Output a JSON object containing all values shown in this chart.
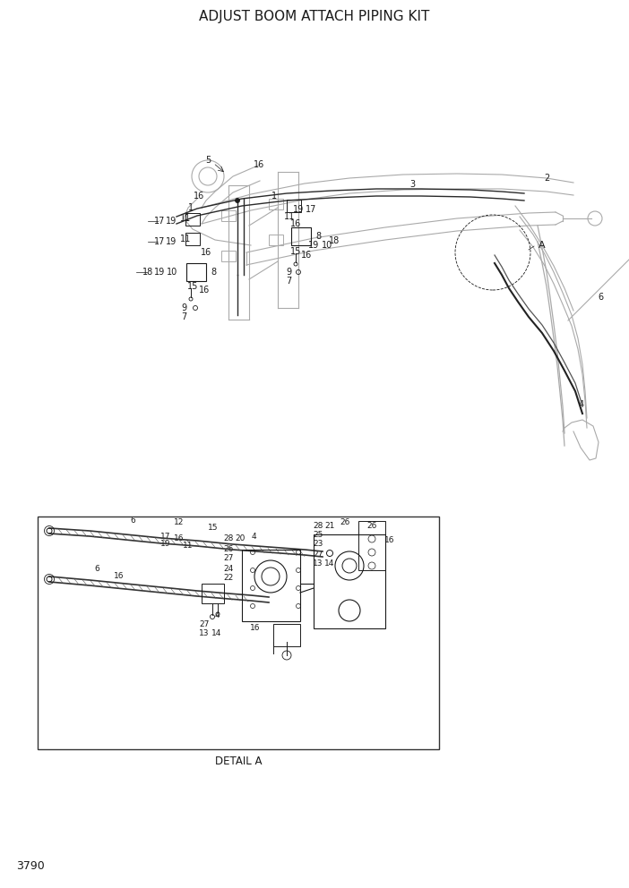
{
  "title": "ADJUST BOOM ATTACH PIPING KIT",
  "page_number": "3790",
  "detail_label": "DETAIL A",
  "background_color": "#ffffff",
  "line_color": "#1a1a1a",
  "arm_color": "#aaaaaa",
  "title_fontsize": 11,
  "page_fontsize": 9,
  "label_fontsize": 7,
  "fig_width": 7.02,
  "fig_height": 9.92,
  "dpi": 100
}
